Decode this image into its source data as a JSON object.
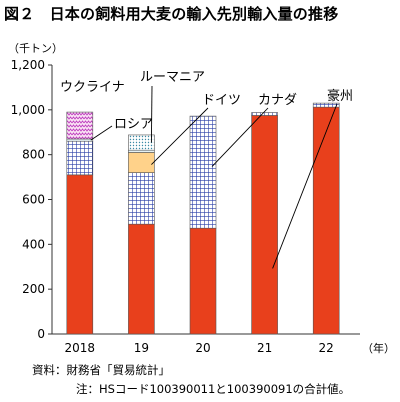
{
  "title": "図２　日本の飼料用大麦の輸入先別輸入量の推移",
  "unit_label": "（千トン）",
  "source": "資料：財務省「貿易統計」",
  "note": "注：HSコード100390011と100390091の合計値。",
  "chart_data": {
    "type": "bar",
    "stacked": true,
    "categories": [
      "2018",
      "19",
      "20",
      "21",
      "22"
    ],
    "x_unit": "（年）",
    "ylim": [
      0,
      1200
    ],
    "yticks": [
      0,
      200,
      400,
      600,
      800,
      "1,000",
      "1,200"
    ],
    "ytick_values": [
      0,
      200,
      400,
      600,
      800,
      1000,
      1200
    ],
    "series": [
      {
        "name": "豪州",
        "values": [
          710,
          490,
          472,
          975,
          1012
        ],
        "color": "#e8401c",
        "pattern": "solid"
      },
      {
        "name": "カナダ",
        "values": [
          150,
          230,
          500,
          13,
          18
        ],
        "color": "#2b3fa8",
        "pattern": "grid"
      },
      {
        "name": "ドイツ",
        "values": [
          0,
          90,
          0,
          0,
          0
        ],
        "color": "#ffd28a",
        "pattern": "solid"
      },
      {
        "name": "ロシア",
        "values": [
          10,
          10,
          0,
          0,
          0
        ],
        "color": "#e6f2f5",
        "pattern": "solid"
      },
      {
        "name": "ルーマニア",
        "values": [
          0,
          68,
          0,
          0,
          0
        ],
        "color": "#5aa0b4",
        "pattern": "dots"
      },
      {
        "name": "ウクライナ",
        "values": [
          120,
          0,
          0,
          0,
          0
        ],
        "color": "#c040c0",
        "pattern": "zigzag"
      }
    ],
    "legend": "direct-labels",
    "grid": false
  }
}
